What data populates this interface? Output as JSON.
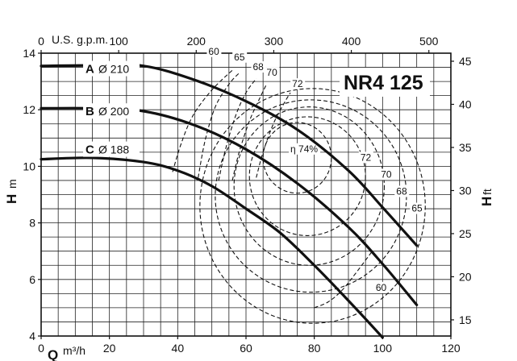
{
  "chart_data": {
    "type": "line",
    "model": "NR4 125",
    "x_axis": {
      "label": "Q",
      "unit": "m³/h",
      "ticks": [
        0,
        20,
        40,
        60,
        80,
        100,
        120
      ],
      "range": [
        0,
        120
      ]
    },
    "x_axis_top": {
      "unit": "U.S. g.p.m.",
      "ticks": [
        0,
        100,
        200,
        300,
        400,
        500
      ],
      "factor": 4.403
    },
    "y_axis_left": {
      "label": "H",
      "unit": "m",
      "ticks": [
        4,
        6,
        8,
        10,
        12,
        14
      ],
      "range": [
        4,
        14
      ]
    },
    "y_axis_right": {
      "label": "H",
      "unit": "ft",
      "ticks": [
        15,
        20,
        25,
        30,
        35,
        40,
        45
      ],
      "factor": 3.281
    },
    "grid": true,
    "series": [
      {
        "letter": "A",
        "diameter": "Ø 210",
        "x": [
          0,
          15,
          30,
          45,
          60,
          75,
          90,
          100,
          110
        ],
        "y": [
          13.55,
          13.57,
          13.55,
          13.05,
          12.3,
          11.3,
          9.85,
          8.55,
          7.2
        ]
      },
      {
        "letter": "B",
        "diameter": "Ø 200",
        "x": [
          0,
          15,
          30,
          45,
          60,
          75,
          90,
          100,
          110
        ],
        "y": [
          12.05,
          12.05,
          11.95,
          11.45,
          10.6,
          9.4,
          7.85,
          6.55,
          5.1
        ]
      },
      {
        "letter": "C",
        "diameter": "Ø 188",
        "x": [
          0,
          15,
          30,
          40,
          50,
          60,
          70,
          80,
          90,
          100
        ],
        "y": [
          10.25,
          10.3,
          10.15,
          9.85,
          9.3,
          8.5,
          7.65,
          6.5,
          5.25,
          3.95
        ]
      }
    ],
    "efficiency_contours": [
      {
        "label": "60",
        "x": [
          38.5,
          41,
          44.5,
          50,
          56
        ],
        "y": [
          9.8,
          10.8,
          11.8,
          12.7,
          13.4
        ]
      },
      {
        "label": "65",
        "x": [
          46,
          48,
          51,
          55,
          58
        ],
        "y": [
          9.6,
          10.9,
          12.1,
          12.9,
          13.3
        ]
      },
      {
        "label": "68",
        "x": [
          52,
          54,
          57,
          60,
          63
        ],
        "y": [
          9.5,
          10.6,
          11.8,
          12.6,
          13.1
        ]
      },
      {
        "label": "70",
        "x": [
          56,
          58,
          61,
          64,
          66
        ],
        "y": [
          9.5,
          10.5,
          11.6,
          12.4,
          12.9
        ]
      },
      {
        "label": "72",
        "x": [
          63,
          65,
          68,
          71,
          73
        ],
        "y": [
          9.6,
          10.5,
          11.5,
          12.2,
          12.6
        ]
      },
      {
        "label": "60",
        "x": [
          80,
          84,
          88,
          92,
          97
        ],
        "y": [
          5.0,
          5.2,
          5.6,
          6.2,
          7.0
        ]
      },
      {
        "label": "η 74%",
        "cx": 75,
        "cy": 10.3,
        "rx": 10,
        "ry": 1.25
      },
      {
        "label": "72",
        "cx": 78,
        "cy": 9.65,
        "rx": 17,
        "ry": 2.1
      },
      {
        "label": "70",
        "cx": 78.5,
        "cy": 9.3,
        "rx": 22,
        "ry": 2.8
      },
      {
        "label": "68",
        "cx": 79,
        "cy": 8.95,
        "rx": 28,
        "ry": 3.4
      },
      {
        "label": "65",
        "cx": 79.5,
        "cy": 8.6,
        "rx": 33,
        "ry": 4.15
      }
    ]
  }
}
